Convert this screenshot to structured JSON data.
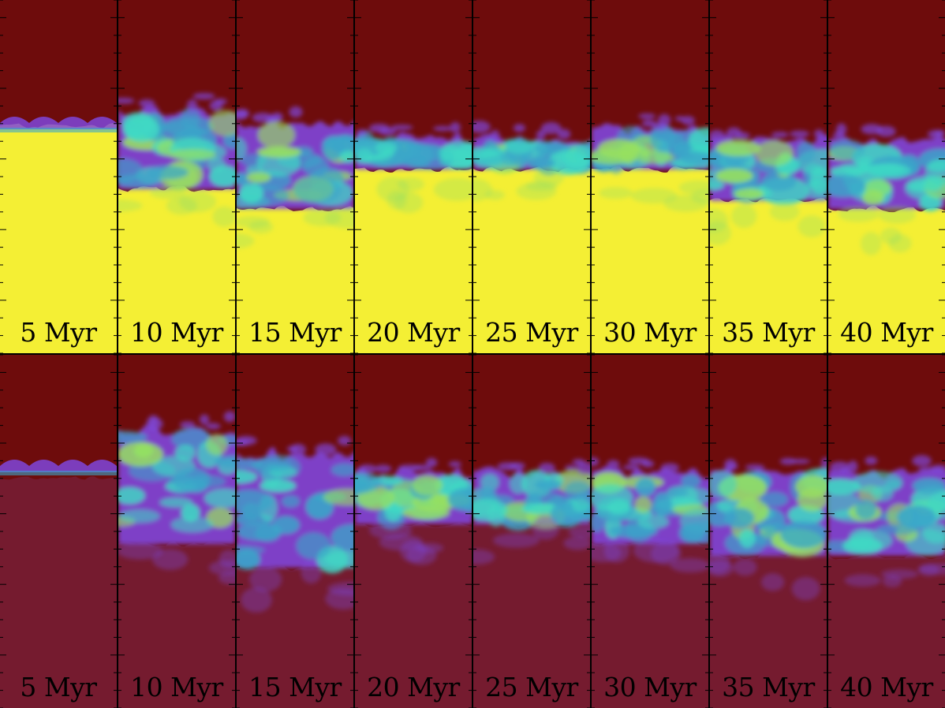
{
  "colors": {
    "hot_dark_red": "#6e0c0c",
    "cold_yellow": "#f4ef34",
    "bottom_fill": "#751b2f",
    "mix_cyan": "#3fd9c4",
    "mix_teal": "#3aa6c9",
    "mix_purple": "#7f47dc",
    "mix_green": "#97e060",
    "frame": "#000000"
  },
  "rows": [
    {
      "name": "top-row",
      "panels": [
        {
          "label": "5 Myr"
        },
        {
          "label": "10 Myr"
        },
        {
          "label": "15 Myr"
        },
        {
          "label": "20 Myr"
        },
        {
          "label": "25 Myr"
        },
        {
          "label": "30 Myr"
        },
        {
          "label": "35 Myr"
        },
        {
          "label": "40 Myr"
        }
      ]
    },
    {
      "name": "bottom-row",
      "panels": [
        {
          "label": "5 Myr"
        },
        {
          "label": "10 Myr"
        },
        {
          "label": "15 Myr"
        },
        {
          "label": "20 Myr"
        },
        {
          "label": "25 Myr"
        },
        {
          "label": "30 Myr"
        },
        {
          "label": "35 Myr"
        },
        {
          "label": "40 Myr"
        }
      ]
    }
  ]
}
